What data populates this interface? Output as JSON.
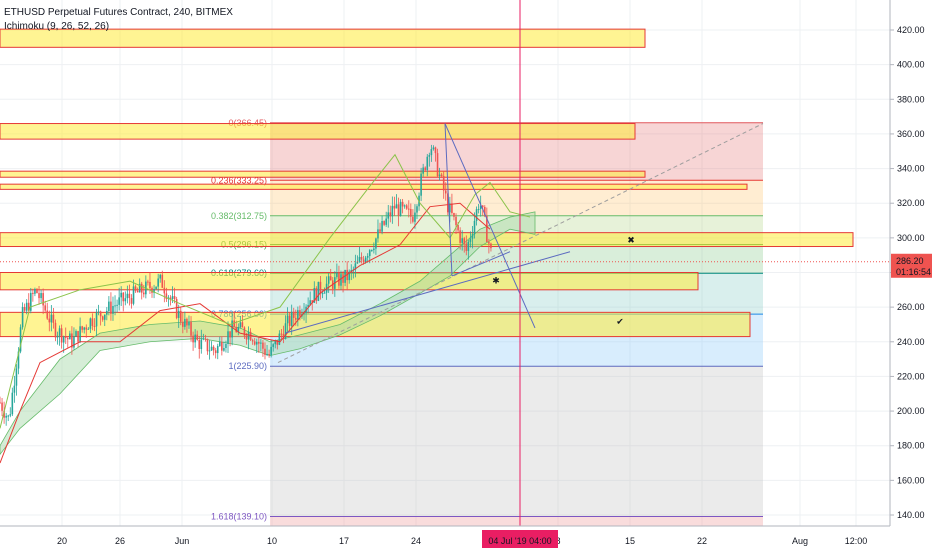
{
  "legend": {
    "title": "ETHUSD Perpetual Futures Contract, 240, BITMEX",
    "indicator": "Ichimoku (9, 26, 52, 26)"
  },
  "chart_data": {
    "type": "candlestick",
    "symbol": "ETHUSD Perpetual Futures Contract",
    "interval": "240",
    "exchange": "BITMEX",
    "indicator": "Ichimoku (9, 26, 52, 26)",
    "ylim": [
      134,
      432
    ],
    "y_ticks": [
      140,
      160,
      180,
      200,
      220,
      240,
      260,
      280,
      300,
      320,
      340,
      360,
      380,
      400,
      420
    ],
    "y_tick_labels": [
      "140.00",
      "160.00",
      "180.00",
      "200.00",
      "220.00",
      "240.00",
      "260.00",
      "280.00",
      "300.00",
      "320.00",
      "340.00",
      "360.00",
      "380.00",
      "400.00",
      "420.00"
    ],
    "x_tick_labels": [
      "20",
      "26",
      "Jun",
      "10",
      "17",
      "24",
      "8",
      "15",
      "22",
      "Aug",
      "12:00"
    ],
    "cursor_label": "04 Jul '19   04:00",
    "last_price": "286.20",
    "countdown": "01:16:54",
    "fib_levels": [
      {
        "label": "0(366.45)",
        "value": 366.45,
        "color": "#e0575c"
      },
      {
        "label": "0.236(333.25)",
        "value": 333.25,
        "color": "#e53935"
      },
      {
        "label": "0.382(312.75)",
        "value": 312.75,
        "color": "#66bb6a"
      },
      {
        "label": "0.5(296.15)",
        "value": 296.15,
        "color": "#43a047"
      },
      {
        "label": "0.618(279.60)",
        "value": 279.6,
        "color": "#00897b"
      },
      {
        "label": "0.786(256.00)",
        "value": 256.0,
        "color": "#1e88e5"
      },
      {
        "label": "1(225.90)",
        "value": 225.9,
        "color": "#5c6bc0"
      },
      {
        "label": "1.618(139.10)",
        "value": 139.1,
        "color": "#7e57c2"
      }
    ],
    "price_series": [
      {
        "t": 0,
        "p": 205
      },
      {
        "t": 0.01,
        "p": 195
      },
      {
        "t": 0.025,
        "p": 255
      },
      {
        "t": 0.04,
        "p": 270
      },
      {
        "t": 0.06,
        "p": 248
      },
      {
        "t": 0.08,
        "p": 240
      },
      {
        "t": 0.1,
        "p": 252
      },
      {
        "t": 0.13,
        "p": 262
      },
      {
        "t": 0.16,
        "p": 270
      },
      {
        "t": 0.18,
        "p": 275
      },
      {
        "t": 0.2,
        "p": 255
      },
      {
        "t": 0.22,
        "p": 240
      },
      {
        "t": 0.24,
        "p": 235
      },
      {
        "t": 0.26,
        "p": 248
      },
      {
        "t": 0.28,
        "p": 245
      },
      {
        "t": 0.3,
        "p": 232
      },
      {
        "t": 0.32,
        "p": 250
      },
      {
        "t": 0.34,
        "p": 262
      },
      {
        "t": 0.36,
        "p": 272
      },
      {
        "t": 0.39,
        "p": 278
      },
      {
        "t": 0.42,
        "p": 300
      },
      {
        "t": 0.44,
        "p": 318
      },
      {
        "t": 0.46,
        "p": 312
      },
      {
        "t": 0.48,
        "p": 355
      },
      {
        "t": 0.5,
        "p": 318
      },
      {
        "t": 0.52,
        "p": 292
      },
      {
        "t": 0.535,
        "p": 322
      },
      {
        "t": 0.55,
        "p": 286
      }
    ]
  }
}
